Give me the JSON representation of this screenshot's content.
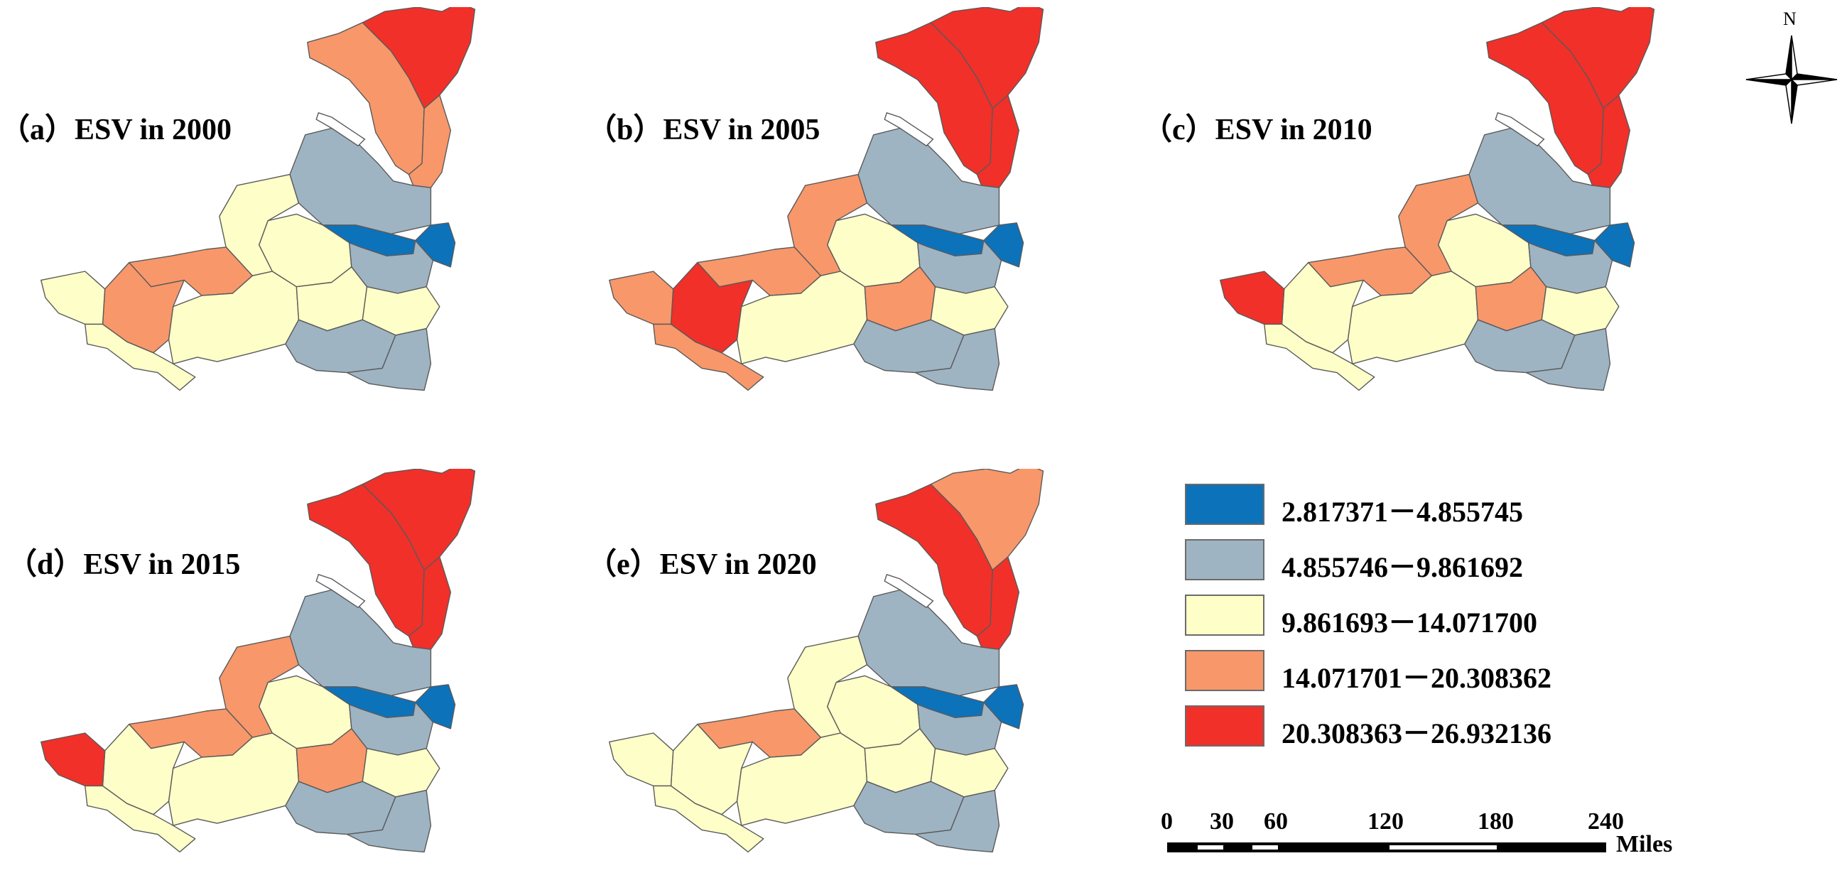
{
  "panels": [
    {
      "title": "（a）ESV in 2000",
      "classes": {
        "nw": 3,
        "n": 4,
        "ne_strip": 3,
        "nc": 1,
        "c_west": 2,
        "c_east": 1,
        "center": 0,
        "east_small": 0,
        "wc": 2,
        "sw": 3,
        "w_mid": 3,
        "west": 2,
        "far_w": 2,
        "s_mid": 2,
        "s_c": 2,
        "se_n": 2,
        "se": 1,
        "se_tail": 1
      }
    },
    {
      "title": "（b）ESV in 2005",
      "classes": {
        "nw": 4,
        "n": 4,
        "ne_strip": 4,
        "nc": 1,
        "c_west": 2,
        "c_east": 1,
        "center": 0,
        "east_small": 0,
        "wc": 3,
        "sw": 3,
        "w_mid": 4,
        "west": 3,
        "far_w": 3,
        "s_mid": 2,
        "s_c": 3,
        "se_n": 2,
        "se": 1,
        "se_tail": 1
      }
    },
    {
      "title": "（c）ESV in 2010",
      "classes": {
        "nw": 4,
        "n": 4,
        "ne_strip": 4,
        "nc": 1,
        "c_west": 2,
        "c_east": 1,
        "center": 0,
        "east_small": 0,
        "wc": 3,
        "sw": 3,
        "w_mid": 2,
        "west": 4,
        "far_w": 2,
        "s_mid": 2,
        "s_c": 3,
        "se_n": 2,
        "se": 1,
        "se_tail": 1
      }
    },
    {
      "title": "（d）ESV in 2015",
      "classes": {
        "nw": 4,
        "n": 4,
        "ne_strip": 4,
        "nc": 1,
        "c_west": 2,
        "c_east": 1,
        "center": 0,
        "east_small": 0,
        "wc": 3,
        "sw": 3,
        "w_mid": 2,
        "west": 4,
        "far_w": 2,
        "s_mid": 2,
        "s_c": 3,
        "se_n": 2,
        "se": 1,
        "se_tail": 1
      }
    },
    {
      "title": "（e）ESV in 2020",
      "classes": {
        "nw": 4,
        "n": 3,
        "ne_strip": 4,
        "nc": 1,
        "c_west": 2,
        "c_east": 1,
        "center": 0,
        "east_small": 0,
        "wc": 2,
        "sw": 3,
        "w_mid": 2,
        "west": 2,
        "far_w": 2,
        "s_mid": 2,
        "s_c": 2,
        "se_n": 2,
        "se": 1,
        "se_tail": 1
      }
    }
  ],
  "legend": [
    {
      "label": "2.817371－4.855745",
      "color": "#0c72ba"
    },
    {
      "label": "4.855746－9.861692",
      "color": "#9fb4c3"
    },
    {
      "label": "9.861693－14.071700",
      "color": "#fefec8"
    },
    {
      "label": "14.071701－20.308362",
      "color": "#f7976a"
    },
    {
      "label": "20.308363－26.932136",
      "color": "#f2302a"
    }
  ],
  "scale_bar": {
    "ticks": [
      "0",
      "30",
      "60",
      "120",
      "180",
      "240"
    ],
    "unit": "Miles"
  },
  "north_arrow": {
    "label": "N",
    "icon": "north-arrow-icon"
  }
}
